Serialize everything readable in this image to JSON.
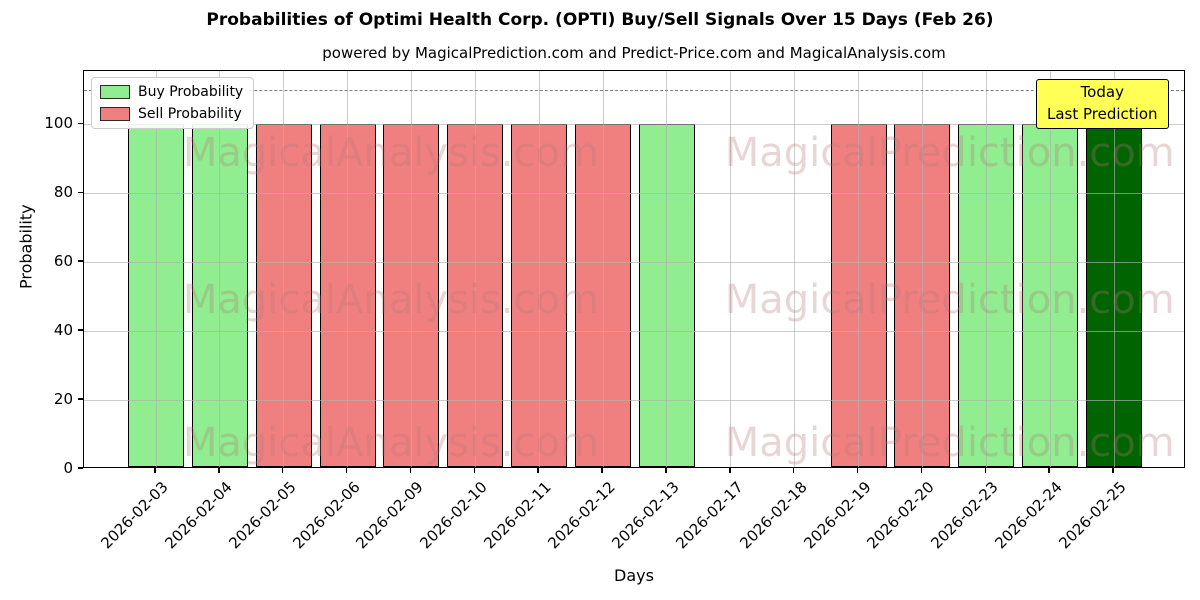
{
  "title": "Probabilities of Optimi Health Corp. (OPTI) Buy/Sell Signals Over 15 Days (Feb 26)",
  "subtitle": "powered by MagicalPrediction.com and Predict-Price.com and MagicalAnalysis.com",
  "legend": {
    "buy_label": "Buy Probability",
    "sell_label": "Sell Probability"
  },
  "annotation": {
    "line1": "Today",
    "line2": "Last Prediction"
  },
  "watermarks": [
    "MagicalAnalysis.com",
    "MagicalPrediction.com"
  ],
  "colors": {
    "buy": "#90ee90",
    "sell": "#f08080",
    "today": "#006400",
    "annotation_bg": "#ffff55",
    "grid": "#b0b0b0",
    "dashed_line": "#7f7f7f",
    "watermark": "rgba(178,118,118,0.30)",
    "bar_edge": "#000000"
  },
  "chart_data": {
    "type": "bar",
    "title": "Probabilities of Optimi Health Corp. (OPTI) Buy/Sell Signals Over 15 Days (Feb 26)",
    "subtitle": "powered by MagicalPrediction.com and Predict-Price.com and MagicalAnalysis.com",
    "xlabel": "Days",
    "ylabel": "Probability",
    "categories": [
      "2026-02-03",
      "2026-02-04",
      "2026-02-05",
      "2026-02-06",
      "2026-02-09",
      "2026-02-10",
      "2026-02-11",
      "2026-02-12",
      "2026-02-13",
      "2026-02-17",
      "2026-02-18",
      "2026-02-19",
      "2026-02-20",
      "2026-02-23",
      "2026-02-24",
      "2026-02-25"
    ],
    "series": [
      {
        "name": "Buy Probability",
        "color": "#90ee90",
        "values": [
          100,
          100,
          0,
          0,
          0,
          0,
          0,
          0,
          100,
          0,
          0,
          0,
          0,
          100,
          100,
          0
        ]
      },
      {
        "name": "Sell Probability",
        "color": "#f08080",
        "values": [
          0,
          0,
          100,
          100,
          100,
          100,
          100,
          100,
          0,
          0,
          0,
          100,
          100,
          0,
          0,
          0
        ]
      },
      {
        "name": "Today Last Prediction",
        "color": "#006400",
        "values": [
          0,
          0,
          0,
          0,
          0,
          0,
          0,
          0,
          0,
          0,
          0,
          0,
          0,
          0,
          0,
          100
        ]
      }
    ],
    "yticks": [
      0,
      20,
      40,
      60,
      80,
      100
    ],
    "ylim": [
      0,
      115.5
    ],
    "threshold_line_y": 110,
    "grid": true,
    "legend_position": "upper left"
  }
}
